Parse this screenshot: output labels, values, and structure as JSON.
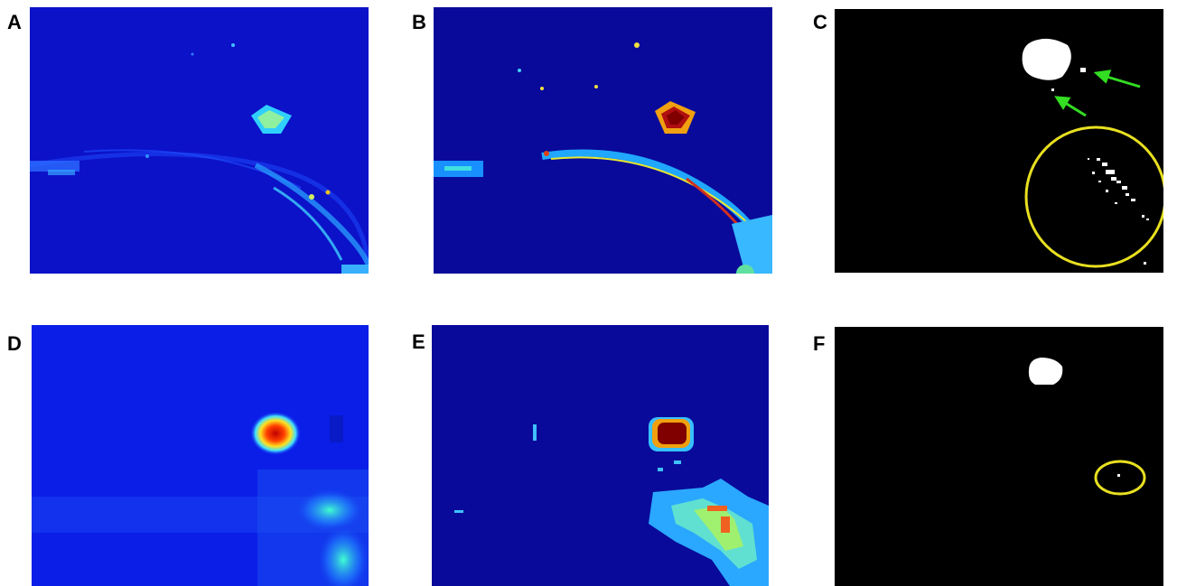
{
  "figure": {
    "panels": [
      {
        "label": "A",
        "kind": "heatmap"
      },
      {
        "label": "B",
        "kind": "quantized-heatmap"
      },
      {
        "label": "C",
        "kind": "binary-mask"
      },
      {
        "label": "D",
        "kind": "smoothed-heatmap"
      },
      {
        "label": "E",
        "kind": "quantized-heatmap"
      },
      {
        "label": "F",
        "kind": "binary-mask"
      }
    ]
  },
  "colors": {
    "jet_background": "#0a0c9a",
    "jet_background_light": "#1020e0",
    "mask_background": "#000000",
    "mask_foreground": "#ffffff",
    "annotation_circle": "#e8e020",
    "annotation_arrow": "#33dd22"
  }
}
